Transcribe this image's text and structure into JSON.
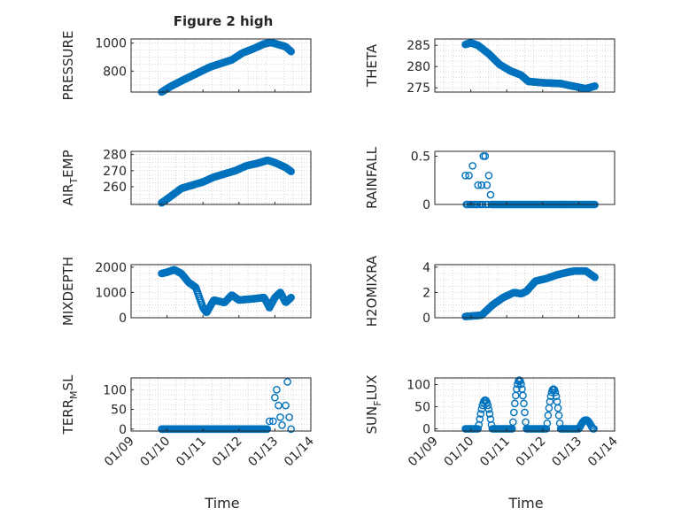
{
  "figure": {
    "title": "Figure 2 high",
    "xlabel": "Time",
    "marker_color": "#0072BD",
    "axis_color": "#262626",
    "grid_color": "#c0c0c0"
  },
  "x_ticks": [
    "01/09",
    "01/10",
    "01/11",
    "01/12",
    "01/13",
    "01/14"
  ],
  "chart_data": [
    {
      "type": "scatter",
      "ylabel": "PRESSURE",
      "title": "Figure 2 high",
      "ylim": [
        650,
        1030
      ],
      "yticks": [
        800,
        1000
      ],
      "grid": true,
      "x": [
        "01/09",
        "01/14"
      ],
      "y_profile": [
        [
          9.85,
          650
        ],
        [
          10.1,
          690
        ],
        [
          10.4,
          730
        ],
        [
          10.8,
          780
        ],
        [
          11.2,
          830
        ],
        [
          11.5,
          855
        ],
        [
          11.8,
          880
        ],
        [
          12.1,
          930
        ],
        [
          12.4,
          960
        ],
        [
          12.7,
          995
        ],
        [
          12.9,
          1005
        ],
        [
          13.1,
          990
        ],
        [
          13.3,
          975
        ],
        [
          13.45,
          940
        ]
      ],
      "series": [
        {
          "values_note": "dense line of points"
        }
      ]
    },
    {
      "type": "scatter",
      "ylabel": "THETA",
      "ylim": [
        274,
        286.5
      ],
      "yticks": [
        275,
        280,
        285
      ],
      "grid": true,
      "y_profile": [
        [
          9.85,
          285.2
        ],
        [
          10.0,
          285.6
        ],
        [
          10.2,
          285
        ],
        [
          10.5,
          283
        ],
        [
          10.8,
          280.5
        ],
        [
          11.1,
          279
        ],
        [
          11.4,
          278
        ],
        [
          11.6,
          276.5
        ],
        [
          12.0,
          276.2
        ],
        [
          12.5,
          276
        ],
        [
          12.9,
          275.3
        ],
        [
          13.2,
          274.8
        ],
        [
          13.45,
          275.4
        ]
      ]
    },
    {
      "type": "scatter",
      "ylabel": "AIR_TEMP",
      "ylim": [
        249,
        282
      ],
      "yticks": [
        260,
        270,
        280
      ],
      "grid": true,
      "y_profile": [
        [
          9.85,
          250
        ],
        [
          10.1,
          254
        ],
        [
          10.4,
          259
        ],
        [
          10.7,
          261
        ],
        [
          11.0,
          263
        ],
        [
          11.3,
          266
        ],
        [
          11.6,
          268
        ],
        [
          11.9,
          270
        ],
        [
          12.2,
          273
        ],
        [
          12.5,
          274.5
        ],
        [
          12.8,
          276.5
        ],
        [
          13.0,
          275
        ],
        [
          13.3,
          272
        ],
        [
          13.45,
          269.5
        ]
      ]
    },
    {
      "type": "scatter",
      "ylabel": "RAINFALL",
      "ylim": [
        0,
        0.55
      ],
      "yticks": [
        0,
        0.5
      ],
      "grid": false,
      "points": [
        [
          9.85,
          0.3
        ],
        [
          9.95,
          0.3
        ],
        [
          10.05,
          0.4
        ],
        [
          10.2,
          0.2
        ],
        [
          10.3,
          0.2
        ],
        [
          10.35,
          0.5
        ],
        [
          10.4,
          0.5
        ],
        [
          10.5,
          0.3
        ],
        [
          10.55,
          0.1
        ],
        [
          10.45,
          0.2
        ]
      ]
    },
    {
      "type": "scatter",
      "ylabel": "MIXDEPTH",
      "ylim": [
        0,
        2100
      ],
      "yticks": [
        0,
        1000,
        2000
      ],
      "grid": true,
      "y_profile": [
        [
          9.85,
          1750
        ],
        [
          10.0,
          1800
        ],
        [
          10.2,
          1900
        ],
        [
          10.4,
          1750
        ],
        [
          10.6,
          1400
        ],
        [
          10.8,
          1200
        ],
        [
          11.0,
          400
        ],
        [
          11.1,
          200
        ],
        [
          11.3,
          700
        ],
        [
          11.6,
          600
        ],
        [
          11.8,
          900
        ],
        [
          12.0,
          700
        ],
        [
          12.4,
          750
        ],
        [
          12.7,
          800
        ],
        [
          12.85,
          400
        ],
        [
          13.0,
          800
        ],
        [
          13.15,
          1000
        ],
        [
          13.3,
          600
        ],
        [
          13.45,
          800
        ]
      ]
    },
    {
      "type": "scatter",
      "ylabel": "H2OMIXRA",
      "ylim": [
        0,
        4.2
      ],
      "yticks": [
        0,
        2,
        4
      ],
      "grid": true,
      "y_profile": [
        [
          9.85,
          0.1
        ],
        [
          10.3,
          0.2
        ],
        [
          10.6,
          1.0
        ],
        [
          10.9,
          1.6
        ],
        [
          11.2,
          2.0
        ],
        [
          11.4,
          1.9
        ],
        [
          11.55,
          2.1
        ],
        [
          11.8,
          2.9
        ],
        [
          12.1,
          3.1
        ],
        [
          12.4,
          3.4
        ],
        [
          12.7,
          3.6
        ],
        [
          12.9,
          3.7
        ],
        [
          13.2,
          3.7
        ],
        [
          13.45,
          3.2
        ]
      ]
    },
    {
      "type": "scatter",
      "ylabel": "TERR_MSL",
      "ylim": [
        -5,
        130
      ],
      "yticks": [
        0,
        50,
        100
      ],
      "grid": true,
      "y_profile": [
        [
          9.85,
          0
        ],
        [
          12.8,
          0
        ]
      ],
      "extra_points": [
        [
          12.85,
          20
        ],
        [
          12.95,
          20
        ],
        [
          13.0,
          80
        ],
        [
          13.05,
          100
        ],
        [
          13.1,
          60
        ],
        [
          13.15,
          30
        ],
        [
          13.2,
          10
        ],
        [
          13.3,
          60
        ],
        [
          13.35,
          120
        ],
        [
          13.4,
          30
        ],
        [
          13.45,
          0
        ]
      ]
    },
    {
      "type": "scatter",
      "ylabel": "SUN_FLUX",
      "ylim": [
        -5,
        115
      ],
      "yticks": [
        0,
        50,
        100
      ],
      "grid": true,
      "peaks": [
        [
          10.4,
          65
        ],
        [
          11.35,
          110
        ],
        [
          12.3,
          90
        ],
        [
          13.2,
          20
        ]
      ]
    }
  ]
}
